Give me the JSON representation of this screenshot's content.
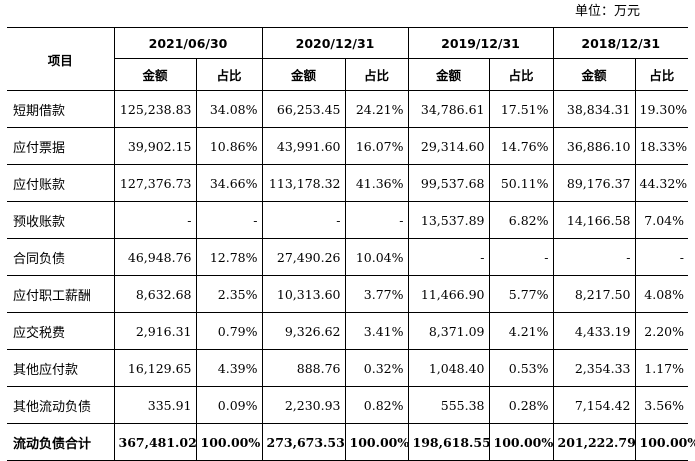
{
  "unit": "单位：万元",
  "header": {
    "item": "项目",
    "periods": [
      "2021/06/30",
      "2020/12/31",
      "2019/12/31",
      "2018/12/31"
    ],
    "amount": "金额",
    "ratio": "占比"
  },
  "rows": [
    {
      "label": "短期借款",
      "cells": [
        "125,238.83",
        "34.08%",
        "66,253.45",
        "24.21%",
        "34,786.61",
        "17.51%",
        "38,834.31",
        "19.30%"
      ]
    },
    {
      "label": "应付票据",
      "cells": [
        "39,902.15",
        "10.86%",
        "43,991.60",
        "16.07%",
        "29,314.60",
        "14.76%",
        "36,886.10",
        "18.33%"
      ]
    },
    {
      "label": "应付账款",
      "cells": [
        "127,376.73",
        "34.66%",
        "113,178.32",
        "41.36%",
        "99,537.68",
        "50.11%",
        "89,176.37",
        "44.32%"
      ]
    },
    {
      "label": "预收账款",
      "cells": [
        "-",
        "-",
        "-",
        "-",
        "13,537.89",
        "6.82%",
        "14,166.58",
        "7.04%"
      ]
    },
    {
      "label": "合同负债",
      "cells": [
        "46,948.76",
        "12.78%",
        "27,490.26",
        "10.04%",
        "-",
        "-",
        "-",
        "-"
      ]
    },
    {
      "label": "应付职工薪酬",
      "cells": [
        "8,632.68",
        "2.35%",
        "10,313.60",
        "3.77%",
        "11,466.90",
        "5.77%",
        "8,217.50",
        "4.08%"
      ]
    },
    {
      "label": "应交税费",
      "cells": [
        "2,916.31",
        "0.79%",
        "9,326.62",
        "3.41%",
        "8,371.09",
        "4.21%",
        "4,433.19",
        "2.20%"
      ]
    },
    {
      "label": "其他应付款",
      "cells": [
        "16,129.65",
        "4.39%",
        "888.76",
        "0.32%",
        "1,048.40",
        "0.53%",
        "2,354.33",
        "1.17%"
      ]
    },
    {
      "label": "其他流动负债",
      "cells": [
        "335.91",
        "0.09%",
        "2,230.93",
        "0.82%",
        "555.38",
        "0.28%",
        "7,154.42",
        "3.56%"
      ]
    },
    {
      "label": "流动负债合计",
      "cells": [
        "367,481.02",
        "100.00%",
        "273,673.53",
        "100.00%",
        "198,618.55",
        "100.00%",
        "201,222.79",
        "100.00%"
      ]
    }
  ]
}
